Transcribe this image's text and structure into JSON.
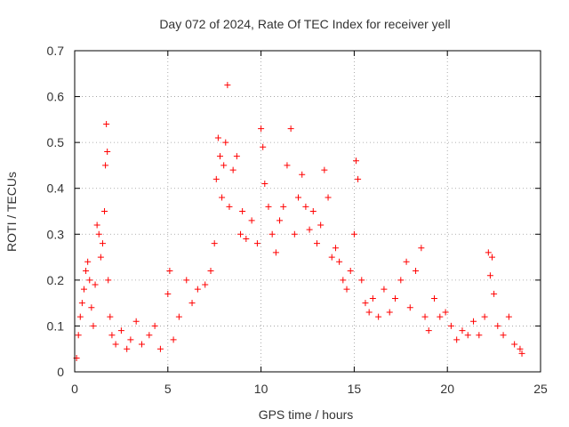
{
  "chart_data": {
    "type": "scatter",
    "title": "Day 072 of 2024, Rate Of TEC Index for receiver yell",
    "xlabel": "GPS time / hours",
    "ylabel": "ROTI / TECUs",
    "xlim": [
      0,
      25
    ],
    "ylim": [
      0,
      0.7
    ],
    "xticks": [
      0,
      5,
      10,
      15,
      20,
      25
    ],
    "yticks": [
      0,
      0.1,
      0.2,
      0.3,
      0.4,
      0.5,
      0.6,
      0.7
    ],
    "xtick_labels": [
      "0",
      "5",
      "10",
      "15",
      "20",
      "25"
    ],
    "ytick_labels": [
      "0",
      "0.1",
      "0.2",
      "0.3",
      "0.4",
      "0.5",
      "0.6",
      "0.7"
    ],
    "grid": true,
    "marker": "plus",
    "color": "#ff0000",
    "series": [
      {
        "name": "ROTI",
        "points": [
          [
            0.1,
            0.03
          ],
          [
            0.2,
            0.08
          ],
          [
            0.3,
            0.12
          ],
          [
            0.4,
            0.15
          ],
          [
            0.5,
            0.18
          ],
          [
            0.6,
            0.22
          ],
          [
            0.7,
            0.24
          ],
          [
            0.8,
            0.2
          ],
          [
            0.9,
            0.14
          ],
          [
            1.0,
            0.1
          ],
          [
            1.1,
            0.19
          ],
          [
            1.2,
            0.32
          ],
          [
            1.3,
            0.3
          ],
          [
            1.4,
            0.25
          ],
          [
            1.5,
            0.28
          ],
          [
            1.6,
            0.35
          ],
          [
            1.65,
            0.45
          ],
          [
            1.7,
            0.54
          ],
          [
            1.75,
            0.48
          ],
          [
            1.8,
            0.2
          ],
          [
            1.9,
            0.12
          ],
          [
            2.0,
            0.08
          ],
          [
            2.2,
            0.06
          ],
          [
            2.5,
            0.09
          ],
          [
            2.8,
            0.05
          ],
          [
            3.0,
            0.07
          ],
          [
            3.3,
            0.11
          ],
          [
            3.6,
            0.06
          ],
          [
            4.0,
            0.08
          ],
          [
            4.3,
            0.1
          ],
          [
            4.6,
            0.05
          ],
          [
            5.0,
            0.17
          ],
          [
            5.1,
            0.22
          ],
          [
            5.3,
            0.07
          ],
          [
            5.6,
            0.12
          ],
          [
            6.0,
            0.2
          ],
          [
            6.3,
            0.15
          ],
          [
            6.6,
            0.18
          ],
          [
            7.0,
            0.19
          ],
          [
            7.3,
            0.22
          ],
          [
            7.5,
            0.28
          ],
          [
            7.6,
            0.42
          ],
          [
            7.7,
            0.51
          ],
          [
            7.8,
            0.47
          ],
          [
            7.9,
            0.38
          ],
          [
            8.0,
            0.45
          ],
          [
            8.1,
            0.5
          ],
          [
            8.2,
            0.625
          ],
          [
            8.3,
            0.36
          ],
          [
            8.5,
            0.44
          ],
          [
            8.7,
            0.47
          ],
          [
            8.9,
            0.3
          ],
          [
            9.0,
            0.35
          ],
          [
            9.2,
            0.29
          ],
          [
            9.5,
            0.33
          ],
          [
            9.8,
            0.28
          ],
          [
            10.0,
            0.53
          ],
          [
            10.1,
            0.49
          ],
          [
            10.2,
            0.41
          ],
          [
            10.4,
            0.36
          ],
          [
            10.6,
            0.3
          ],
          [
            10.8,
            0.26
          ],
          [
            11.0,
            0.33
          ],
          [
            11.2,
            0.36
          ],
          [
            11.4,
            0.45
          ],
          [
            11.6,
            0.53
          ],
          [
            11.8,
            0.3
          ],
          [
            12.0,
            0.38
          ],
          [
            12.2,
            0.43
          ],
          [
            12.4,
            0.36
          ],
          [
            12.6,
            0.31
          ],
          [
            12.8,
            0.35
          ],
          [
            13.0,
            0.28
          ],
          [
            13.2,
            0.32
          ],
          [
            13.4,
            0.44
          ],
          [
            13.6,
            0.38
          ],
          [
            13.8,
            0.25
          ],
          [
            14.0,
            0.27
          ],
          [
            14.2,
            0.24
          ],
          [
            14.4,
            0.2
          ],
          [
            14.6,
            0.18
          ],
          [
            14.8,
            0.22
          ],
          [
            15.0,
            0.3
          ],
          [
            15.1,
            0.46
          ],
          [
            15.2,
            0.42
          ],
          [
            15.4,
            0.2
          ],
          [
            15.6,
            0.15
          ],
          [
            15.8,
            0.13
          ],
          [
            16.0,
            0.16
          ],
          [
            16.3,
            0.12
          ],
          [
            16.6,
            0.18
          ],
          [
            16.9,
            0.13
          ],
          [
            17.2,
            0.16
          ],
          [
            17.5,
            0.2
          ],
          [
            17.8,
            0.24
          ],
          [
            18.0,
            0.14
          ],
          [
            18.3,
            0.22
          ],
          [
            18.6,
            0.27
          ],
          [
            18.8,
            0.12
          ],
          [
            19.0,
            0.09
          ],
          [
            19.3,
            0.16
          ],
          [
            19.6,
            0.12
          ],
          [
            19.9,
            0.13
          ],
          [
            20.2,
            0.1
          ],
          [
            20.5,
            0.07
          ],
          [
            20.8,
            0.09
          ],
          [
            21.1,
            0.08
          ],
          [
            21.4,
            0.11
          ],
          [
            21.7,
            0.08
          ],
          [
            22.0,
            0.12
          ],
          [
            22.2,
            0.26
          ],
          [
            22.3,
            0.21
          ],
          [
            22.4,
            0.25
          ],
          [
            22.5,
            0.17
          ],
          [
            22.7,
            0.1
          ],
          [
            23.0,
            0.08
          ],
          [
            23.3,
            0.12
          ],
          [
            23.6,
            0.06
          ],
          [
            23.9,
            0.05
          ],
          [
            24.0,
            0.04
          ]
        ]
      }
    ]
  }
}
